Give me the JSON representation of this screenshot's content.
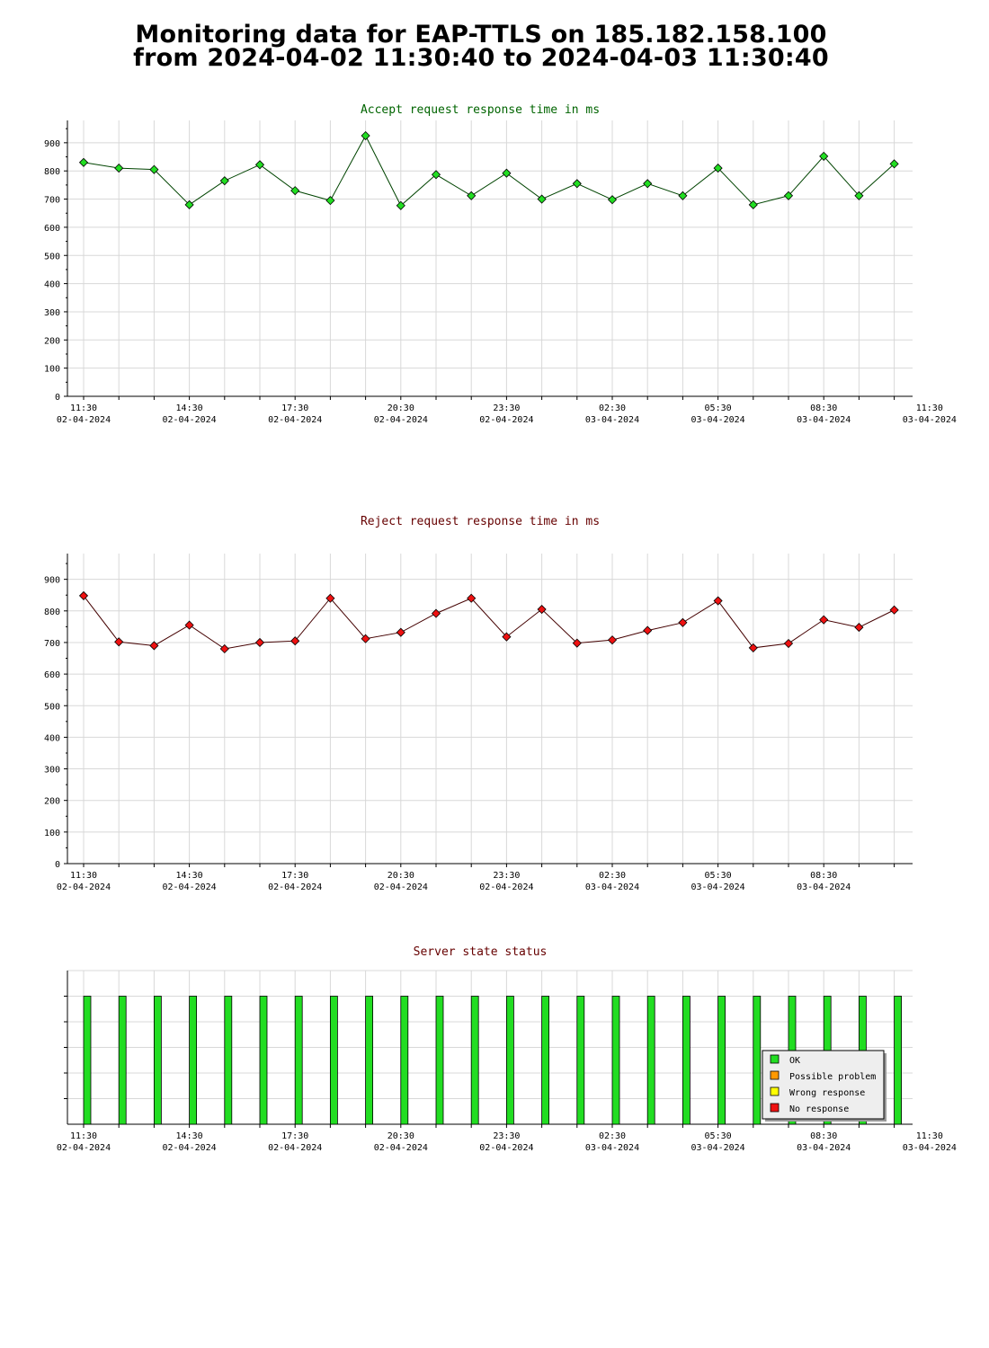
{
  "page": {
    "title_line1": "Monitoring data for EAP-TTLS on 185.182.158.100",
    "title_line2": "from 2024-04-02 11:30:40 to 2024-04-03 11:30:40"
  },
  "chart_data": [
    {
      "type": "line",
      "title": "Accept request response time in ms",
      "title_color": "#006400",
      "series": [
        {
          "color": "#22dd22",
          "line_color": "#004400",
          "x": [
            "11:30",
            "12:30",
            "13:30",
            "14:30",
            "15:30",
            "16:30",
            "17:30",
            "18:30",
            "19:30",
            "20:30",
            "21:30",
            "22:30",
            "23:30",
            "00:30",
            "01:30",
            "02:30",
            "03:30",
            "04:30",
            "05:30",
            "06:30",
            "07:30",
            "08:30",
            "09:30",
            "10:30"
          ],
          "values": [
            830,
            810,
            805,
            680,
            765,
            822,
            730,
            695,
            925,
            677,
            787,
            712,
            792,
            700,
            755,
            698,
            755,
            712,
            810,
            680,
            712,
            852,
            712,
            825
          ]
        }
      ],
      "ylim": [
        0,
        950
      ],
      "yticks": [
        0,
        100,
        200,
        300,
        400,
        500,
        600,
        700,
        800,
        900
      ],
      "xtick_labels": [
        {
          "time": "11:30",
          "date": "02-04-2024"
        },
        {
          "time": "14:30",
          "date": "02-04-2024"
        },
        {
          "time": "17:30",
          "date": "02-04-2024"
        },
        {
          "time": "20:30",
          "date": "02-04-2024"
        },
        {
          "time": "23:30",
          "date": "02-04-2024"
        },
        {
          "time": "02:30",
          "date": "03-04-2024"
        },
        {
          "time": "05:30",
          "date": "03-04-2024"
        },
        {
          "time": "08:30",
          "date": "03-04-2024"
        },
        {
          "time": "11:30",
          "date": "03-04-2024"
        }
      ],
      "grid": true
    },
    {
      "type": "line",
      "title": "Reject request response time in ms",
      "title_color": "#660000",
      "series": [
        {
          "color": "#ee1111",
          "line_color": "#440000",
          "x": [
            "11:30",
            "12:30",
            "13:30",
            "14:30",
            "15:30",
            "16:30",
            "17:30",
            "18:30",
            "19:30",
            "20:30",
            "21:30",
            "22:30",
            "23:30",
            "00:30",
            "01:30",
            "02:30",
            "03:30",
            "04:30",
            "05:30",
            "06:30",
            "07:30",
            "08:30",
            "09:30",
            "10:30"
          ],
          "values": [
            848,
            702,
            690,
            755,
            680,
            700,
            705,
            840,
            712,
            732,
            792,
            840,
            718,
            805,
            698,
            708,
            738,
            763,
            832,
            683,
            697,
            772,
            748,
            803
          ]
        }
      ],
      "ylim": [
        0,
        980
      ],
      "yticks": [
        0,
        100,
        200,
        300,
        400,
        500,
        600,
        700,
        800,
        900
      ],
      "xtick_labels": [
        {
          "time": "11:30",
          "date": "02-04-2024"
        },
        {
          "time": "14:30",
          "date": "02-04-2024"
        },
        {
          "time": "17:30",
          "date": "02-04-2024"
        },
        {
          "time": "20:30",
          "date": "02-04-2024"
        },
        {
          "time": "23:30",
          "date": "02-04-2024"
        },
        {
          "time": "02:30",
          "date": "03-04-2024"
        },
        {
          "time": "05:30",
          "date": "03-04-2024"
        },
        {
          "time": "08:30",
          "date": "03-04-2024"
        }
      ],
      "grid": true
    },
    {
      "type": "bar",
      "title": "Server state status",
      "title_color": "#660000",
      "x": [
        "11:30",
        "12:30",
        "13:30",
        "14:30",
        "15:30",
        "16:30",
        "17:30",
        "18:30",
        "19:30",
        "20:30",
        "21:30",
        "22:30",
        "23:30",
        "00:30",
        "01:30",
        "02:30",
        "03:30",
        "04:30",
        "05:30",
        "06:30",
        "07:30",
        "08:30",
        "09:30",
        "10:30"
      ],
      "states": [
        "OK",
        "OK",
        "OK",
        "OK",
        "OK",
        "OK",
        "OK",
        "OK",
        "OK",
        "OK",
        "OK",
        "OK",
        "OK",
        "OK",
        "OK",
        "OK",
        "OK",
        "OK",
        "OK",
        "OK",
        "OK",
        "OK",
        "OK",
        "OK"
      ],
      "legend": [
        {
          "label": "OK",
          "color": "#22dd22"
        },
        {
          "label": "Possible problem",
          "color": "#ff9900"
        },
        {
          "label": "Wrong response",
          "color": "#ffff00"
        },
        {
          "label": "No response",
          "color": "#ee1111"
        }
      ],
      "legend_position": "bottom-right",
      "xtick_labels": [
        {
          "time": "11:30",
          "date": "02-04-2024"
        },
        {
          "time": "14:30",
          "date": "02-04-2024"
        },
        {
          "time": "17:30",
          "date": "02-04-2024"
        },
        {
          "time": "20:30",
          "date": "02-04-2024"
        },
        {
          "time": "23:30",
          "date": "02-04-2024"
        },
        {
          "time": "02:30",
          "date": "03-04-2024"
        },
        {
          "time": "05:30",
          "date": "03-04-2024"
        },
        {
          "time": "08:30",
          "date": "03-04-2024"
        },
        {
          "time": "11:30",
          "date": "03-04-2024"
        }
      ],
      "grid": true
    }
  ]
}
